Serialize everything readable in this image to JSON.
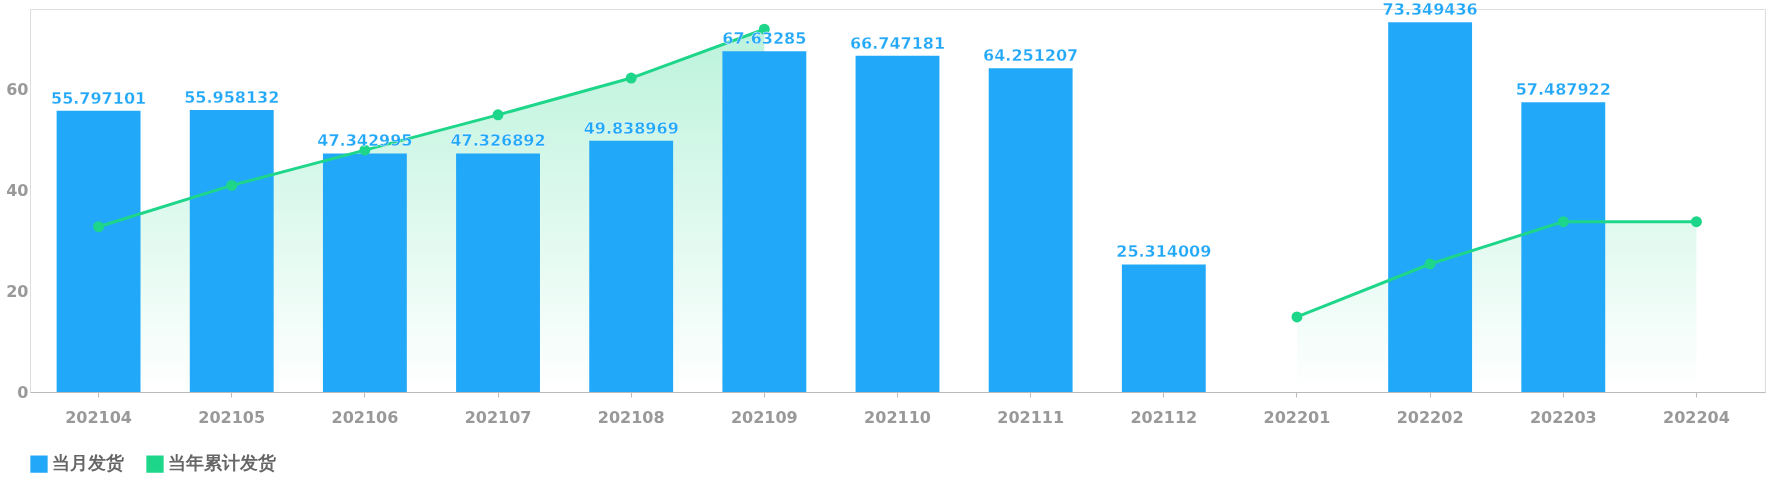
{
  "chart_data": {
    "type": "bar",
    "categories": [
      "202104",
      "202105",
      "202106",
      "202107",
      "202108",
      "202109",
      "202110",
      "202111",
      "202112",
      "202201",
      "202202",
      "202203",
      "202204"
    ],
    "series": [
      {
        "name": "当月发货",
        "color": "#22a8f8",
        "values": [
          55.797101,
          55.958132,
          47.342995,
          47.326892,
          49.838969,
          67.63285,
          66.747181,
          64.251207,
          25.314009,
          null,
          73.349436,
          57.487922,
          null
        ],
        "value_labels": [
          "55.797101",
          "55.958132",
          "47.342995",
          "47.326892",
          "49.838969",
          "67.63285",
          "66.747181",
          "64.251207",
          "25.314009",
          null,
          "73.349436",
          "57.487922",
          null
        ]
      },
      {
        "name": "当年累计发货",
        "type": "area",
        "color": "#1ed68a",
        "values": [
          32.8,
          41,
          48,
          55,
          62.3,
          72,
          null,
          null,
          null,
          14.9,
          25.4,
          33.8,
          33.8
        ]
      }
    ],
    "ylim": [
      0,
      76
    ],
    "yticks": [
      0,
      20,
      40,
      60
    ],
    "grid": false,
    "legend": "bottom",
    "marker": "circle"
  }
}
